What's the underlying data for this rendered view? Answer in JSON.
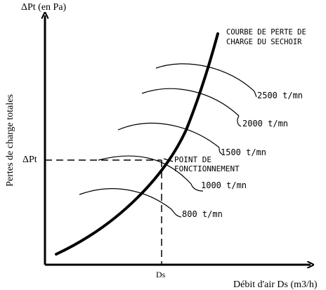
{
  "axes": {
    "y_title": "ΔPt (en Pa)",
    "y_label": "Pertes de charge totales",
    "x_label": "Débit d'air Ds (m3/h)",
    "y_tick": "ΔPt",
    "x_tick": "Ds"
  },
  "labels": {
    "dryer_curve_line1": "COURBE DE PERTE DE",
    "dryer_curve_line2": "CHARGE DU SECHOIR",
    "operating_point_line1": "POINT DE",
    "operating_point_line2": "FONCTIONNEMENT"
  },
  "fan_curves": [
    {
      "speed": "2500 t/mn"
    },
    {
      "speed": "2000 t/mn"
    },
    {
      "speed": "1500 t/mn"
    },
    {
      "speed": "1000 t/mn"
    },
    {
      "speed": "800 t/mn"
    }
  ],
  "colors": {
    "ink": "#000000",
    "background": "#ffffff"
  }
}
